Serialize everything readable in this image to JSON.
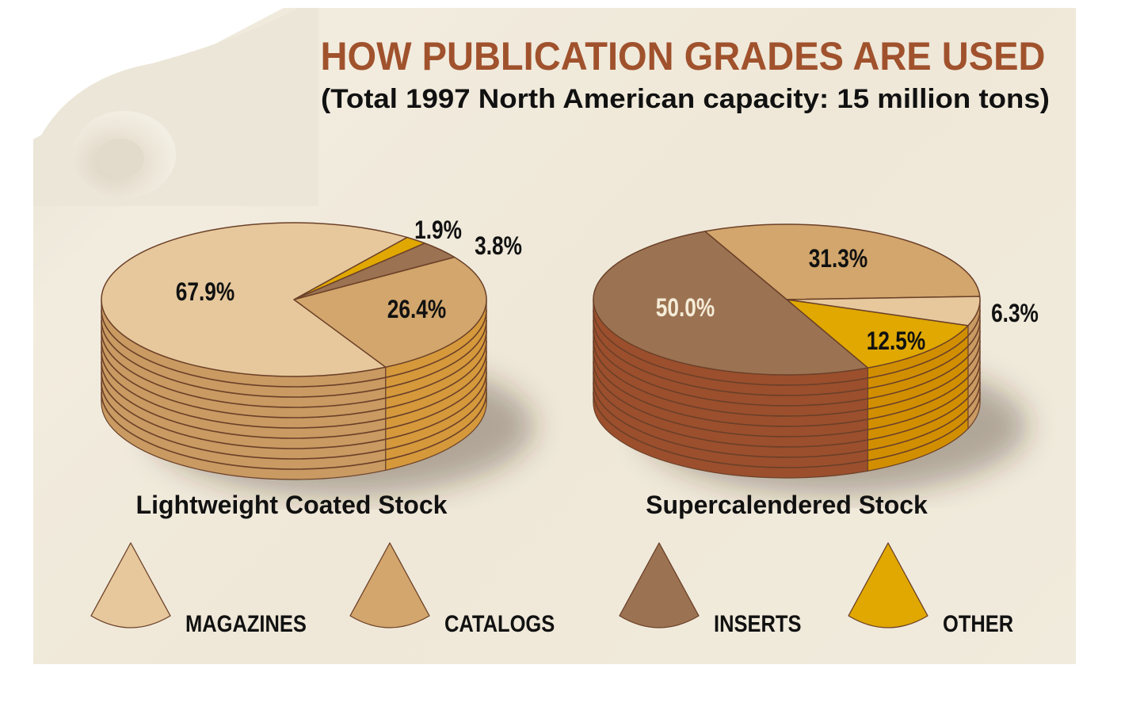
{
  "title": "HOW PUBLICATION GRADES ARE USED",
  "subtitle": "(Total 1997 North American  capacity: 15 million tons)",
  "colors": {
    "title": "#a0522d",
    "magazines": "#e6c89c",
    "catalogs": "#d2a66c",
    "inserts": "#9b7352",
    "other": "#e0a800",
    "outline": "#6b4028"
  },
  "chart_data": [
    {
      "type": "pie",
      "label": "Lightweight Coated Stock",
      "style": "3d-stacked",
      "slices": [
        {
          "category": "OTHER",
          "value": 1.9,
          "label": "1.9%"
        },
        {
          "category": "INSERTS",
          "value": 3.8,
          "label": "3.8%"
        },
        {
          "category": "CATALOGS",
          "value": 26.4,
          "label": "26.4%"
        },
        {
          "category": "MAGAZINES",
          "value": 67.9,
          "label": "67.9%"
        }
      ]
    },
    {
      "type": "pie",
      "label": "Supercalendered Stock",
      "style": "3d-stacked",
      "slices": [
        {
          "category": "CATALOGS",
          "value": 31.3,
          "label": "31.3%"
        },
        {
          "category": "MAGAZINES",
          "value": 6.3,
          "label": "6.3%"
        },
        {
          "category": "OTHER",
          "value": 12.5,
          "label": "12.5%"
        },
        {
          "category": "INSERTS",
          "value": 50.0,
          "label": "50.0%"
        }
      ]
    }
  ],
  "legend": [
    {
      "key": "magazines",
      "label": "MAGAZINES"
    },
    {
      "key": "catalogs",
      "label": "CATALOGS"
    },
    {
      "key": "inserts",
      "label": "INSERTS"
    },
    {
      "key": "other",
      "label": "OTHER"
    }
  ]
}
